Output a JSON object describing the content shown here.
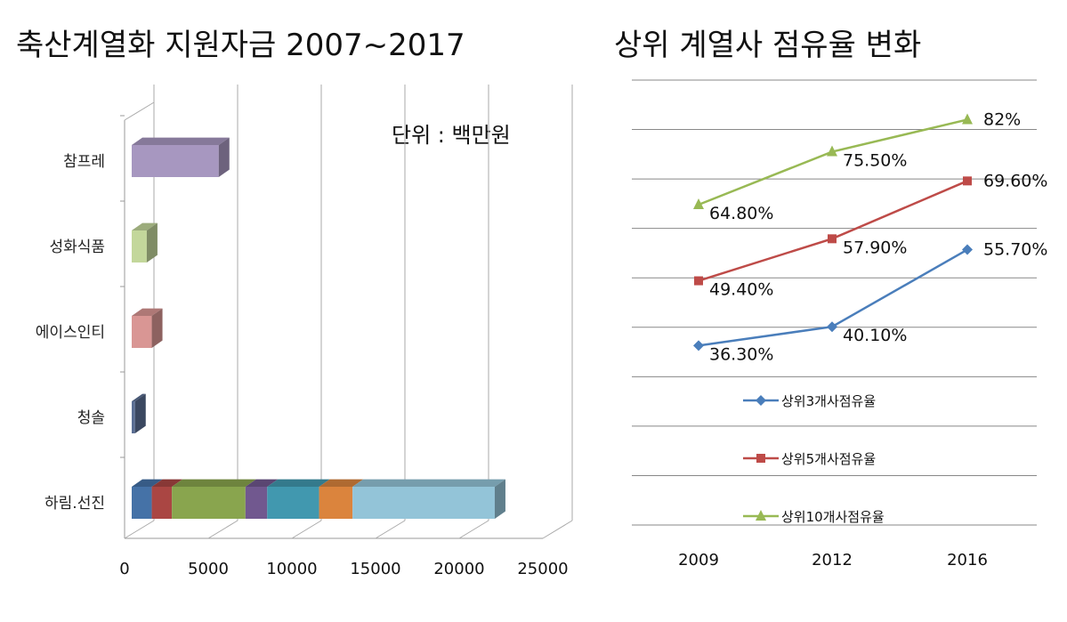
{
  "chart_data": [
    {
      "type": "bar",
      "orientation": "horizontal",
      "stacked": true,
      "title": "축산계열화 지원자금 2007~2017",
      "unit_note": "단위 : 백만원",
      "categories": [
        "참프레",
        "성화식품",
        "에이스인티",
        "청솔",
        "하림.선진"
      ],
      "xlim": [
        0,
        25000
      ],
      "xticks": [
        "0",
        "5000",
        "10000",
        "15000",
        "20000",
        "25000"
      ],
      "grid": true,
      "bars": [
        {
          "category": "참프레",
          "segments": [
            {
              "value": 5200,
              "color": "#a797c0"
            }
          ]
        },
        {
          "category": "성화식품",
          "segments": [
            {
              "value": 900,
              "color": "#c3d79b"
            }
          ]
        },
        {
          "category": "에이스인티",
          "segments": [
            {
              "value": 1200,
              "color": "#d99694"
            }
          ]
        },
        {
          "category": "청솔",
          "segments": [
            {
              "value": 200,
              "color": "#5a6e93"
            }
          ]
        },
        {
          "category": "하림.선진",
          "segments": [
            {
              "value": 1200,
              "color": "#4572a7"
            },
            {
              "value": 1200,
              "color": "#aa4643"
            },
            {
              "value": 4400,
              "color": "#89a54e"
            },
            {
              "value": 1300,
              "color": "#71588f"
            },
            {
              "value": 3100,
              "color": "#4198af"
            },
            {
              "value": 2000,
              "color": "#db843d"
            },
            {
              "value": 8500,
              "color": "#93c4d8"
            }
          ]
        }
      ]
    },
    {
      "type": "line",
      "title": "상위 계열사 점유율 변화",
      "categories": [
        "2009",
        "2012",
        "2016"
      ],
      "ylim": [
        0,
        90
      ],
      "grid": true,
      "legend": "bottom-right",
      "series": [
        {
          "name": "상위3개사점유율",
          "values": [
            36.3,
            40.1,
            55.7
          ],
          "labels": [
            "36.30%",
            "40.10%",
            "55.70%"
          ],
          "color": "#4a7ebb",
          "marker": "diamond"
        },
        {
          "name": "상위5개사점유율",
          "values": [
            49.4,
            57.9,
            69.6
          ],
          "labels": [
            "49.40%",
            "57.90%",
            "69.60%"
          ],
          "color": "#be4b48",
          "marker": "square"
        },
        {
          "name": "상위10개사점유율",
          "values": [
            64.8,
            75.5,
            82
          ],
          "labels": [
            "64.80%",
            "75.50%",
            "82%"
          ],
          "color": "#98b954",
          "marker": "triangle"
        }
      ]
    }
  ]
}
